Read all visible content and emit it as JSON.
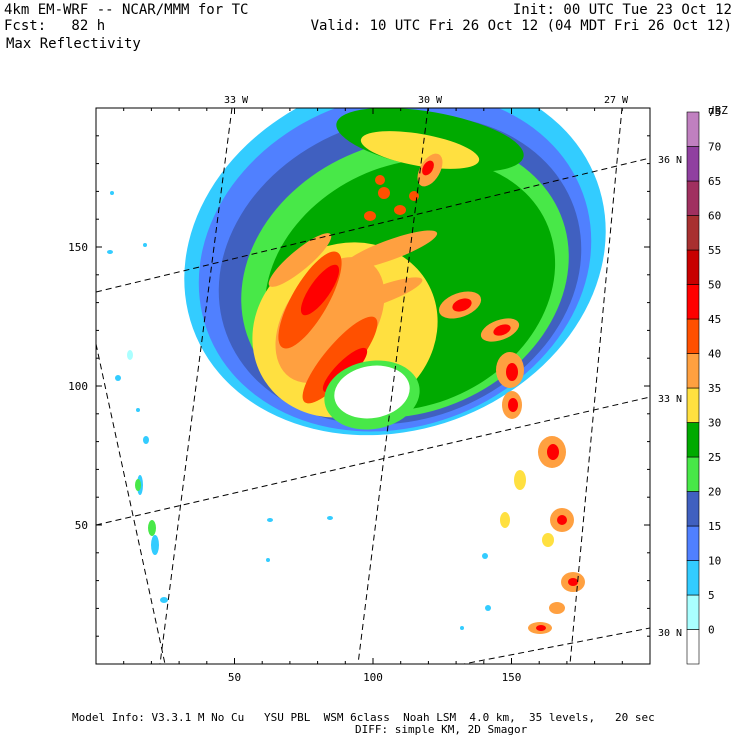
{
  "header": {
    "model_line": "4km EM-WRF -- NCAR/MMM for TC",
    "init_line": "Init: 00 UTC Tue 23 Oct 12",
    "fcst_line": "Fcst:   82 h",
    "valid_line": "Valid: 10 UTC Fri 26 Oct 12 (04 MDT Fri 26 Oct 12)",
    "field_title": "Max Reflectivity"
  },
  "footer": {
    "model_info": "Model Info: V3.3.1 M No Cu   YSU PBL  WSM 6class  Noah LSM  4.0 km,  35 levels,   20 sec",
    "diff_info": "DIFF: simple KM, 2D Smagor"
  },
  "chart_data": {
    "type": "heatmap",
    "title": "Max Reflectivity",
    "x_ticks": [
      50,
      100,
      150
    ],
    "y_ticks": [
      50,
      100,
      150
    ],
    "xlim": [
      0,
      200
    ],
    "ylim": [
      0,
      200
    ],
    "longitude_labels": [
      "33 W",
      "30 W",
      "27 W"
    ],
    "latitude_labels": [
      "36 N",
      "33 N",
      "30 N"
    ],
    "colorbar": {
      "units": "dBZ",
      "levels": [
        0,
        5,
        10,
        15,
        20,
        25,
        30,
        35,
        40,
        45,
        50,
        55,
        60,
        65,
        70,
        75
      ],
      "colors": [
        "#ffffff",
        "#aaffff",
        "#33ccff",
        "#5080ff",
        "#4060c0",
        "#48e848",
        "#00aa00",
        "#ffe040",
        "#ffa040",
        "#ff5000",
        "#ff0000",
        "#c80000",
        "#a83030",
        "#a03060",
        "#9040a0",
        "#c080c0"
      ]
    }
  }
}
